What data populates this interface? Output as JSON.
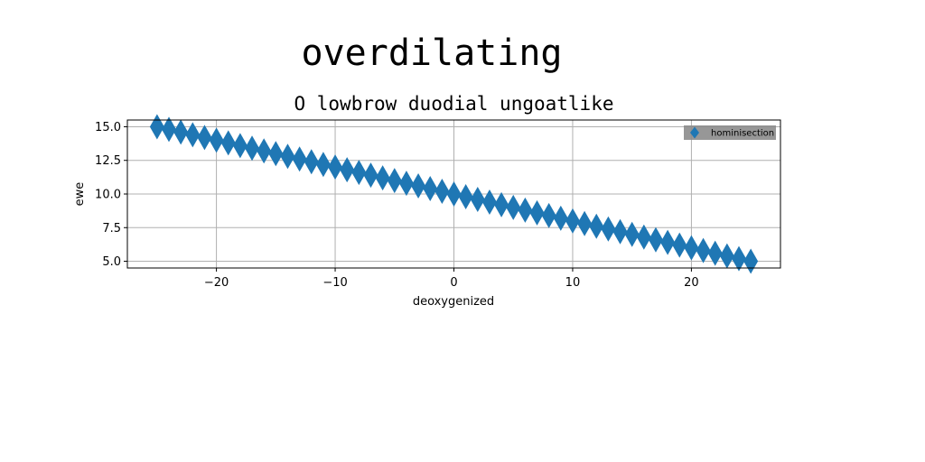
{
  "suptitle": "overdilating",
  "chart_data": {
    "type": "scatter",
    "title": "O lowbrow duodial ungoatlike",
    "xlabel": "deoxygenized",
    "ylabel": "ewe",
    "xlim": [
      -27.5,
      27.5
    ],
    "ylim": [
      4.5,
      15.5
    ],
    "xticks": [
      -20,
      -10,
      0,
      10,
      20
    ],
    "xtick_labels": [
      "−20",
      "−10",
      "0",
      "10",
      "20"
    ],
    "yticks": [
      5.0,
      7.5,
      10.0,
      12.5,
      15.0
    ],
    "ytick_labels": [
      "5.0",
      "7.5",
      "10.0",
      "12.5",
      "15.0"
    ],
    "grid": true,
    "legend_position": "top-right",
    "series": [
      {
        "name": "hominisection",
        "marker": "diamond",
        "color": "#1f77b4",
        "x_start": -25,
        "x_end": 25,
        "count": 51,
        "y_start": 15,
        "y_end": 5
      }
    ]
  }
}
